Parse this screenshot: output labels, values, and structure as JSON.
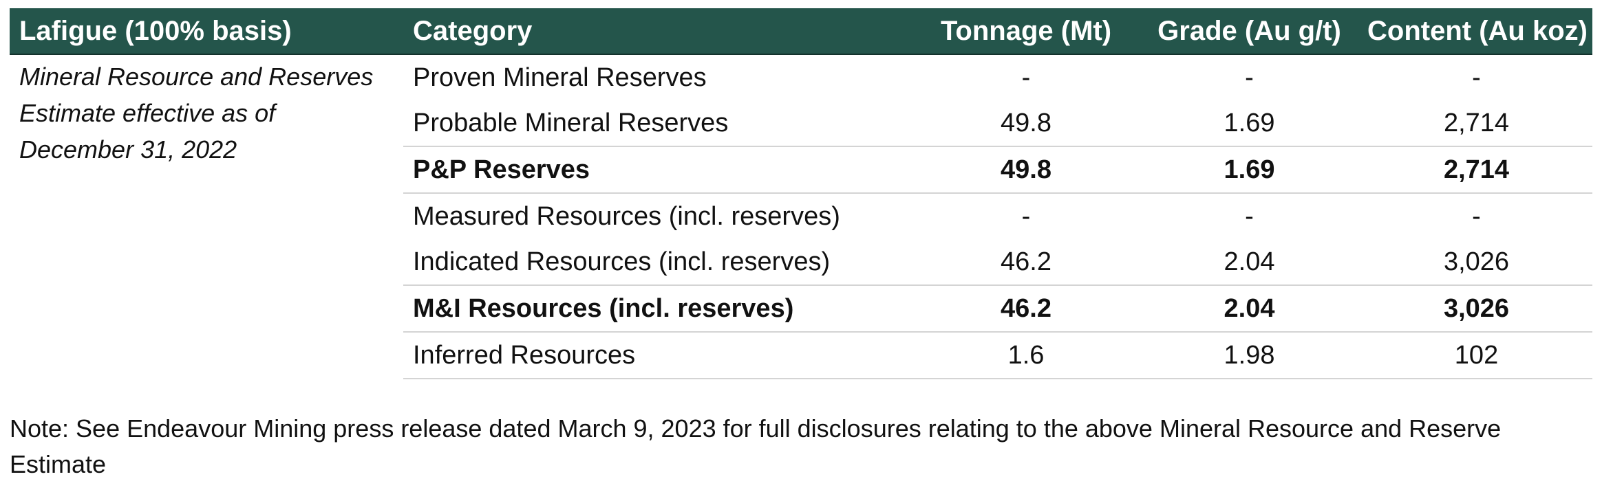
{
  "table": {
    "headers": {
      "basis": "Lafigue (100% basis)",
      "category": "Category",
      "tonnage": "Tonnage (Mt)",
      "grade": "Grade (Au g/t)",
      "content": "Content (Au koz)"
    },
    "intro_text": "Mineral Resource and Reserves Estimate effective as of December 31, 2022",
    "rows": [
      {
        "category": "Proven Mineral Reserves",
        "tonnage": "-",
        "grade": "-",
        "content": "-"
      },
      {
        "category": "Probable Mineral Reserves",
        "tonnage": "49.8",
        "grade": "1.69",
        "content": "2,714"
      },
      {
        "category": "P&P Reserves",
        "tonnage": "49.8",
        "grade": "1.69",
        "content": "2,714"
      },
      {
        "category": "Measured Resources (incl. reserves)",
        "tonnage": "-",
        "grade": "-",
        "content": "-"
      },
      {
        "category": "Indicated Resources (incl. reserves)",
        "tonnage": "46.2",
        "grade": "2.04",
        "content": "3,026"
      },
      {
        "category": "M&I Resources (incl. reserves)",
        "tonnage": "46.2",
        "grade": "2.04",
        "content": "3,026"
      },
      {
        "category": "Inferred Resources",
        "tonnage": "1.6",
        "grade": "1.98",
        "content": "102"
      }
    ]
  },
  "note": "Note: See Endeavour Mining press release dated March 9, 2023 for full disclosures relating to the above Mineral Resource and Reserve Estimate",
  "colors": {
    "header_background": "#24554b",
    "header_text": "#ffffff",
    "row_rule": "#d4d4d4"
  }
}
